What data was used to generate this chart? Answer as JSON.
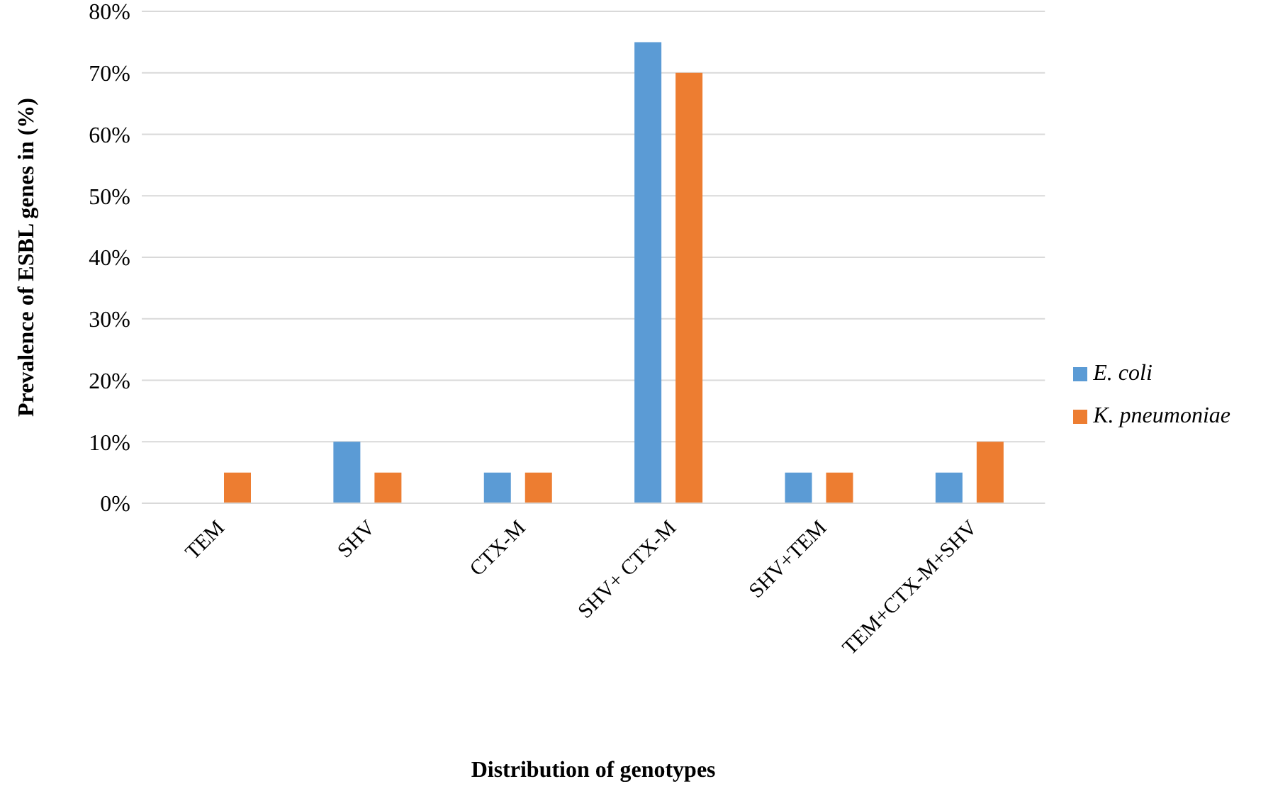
{
  "chart_data": {
    "type": "bar",
    "xlabel": "Distribution of genotypes",
    "ylabel": "Prevalence of ESBL genes in (%)",
    "categories": [
      "TEM",
      "SHV",
      "CTX-M",
      "SHV+ CTX-M",
      "SHV+TEM",
      "TEM+CTX-M+SHV"
    ],
    "series": [
      {
        "name": "E. coli",
        "color": "#5b9bd5",
        "values": [
          0,
          10,
          5,
          75,
          5,
          5
        ]
      },
      {
        "name": "K. pneumoniae",
        "color": "#ed7d31",
        "values": [
          5,
          5,
          5,
          70,
          5,
          10
        ]
      }
    ],
    "ylim": [
      0,
      80
    ],
    "yticks": [
      {
        "value": 0,
        "label": "0%"
      },
      {
        "value": 10,
        "label": "10%"
      },
      {
        "value": 20,
        "label": "20%"
      },
      {
        "value": 30,
        "label": "30%"
      },
      {
        "value": 40,
        "label": "40%"
      },
      {
        "value": 50,
        "label": "50%"
      },
      {
        "value": 60,
        "label": "60%"
      },
      {
        "value": 70,
        "label": "70%"
      },
      {
        "value": 80,
        "label": "80%"
      }
    ],
    "grid": "y",
    "legend": "right"
  }
}
